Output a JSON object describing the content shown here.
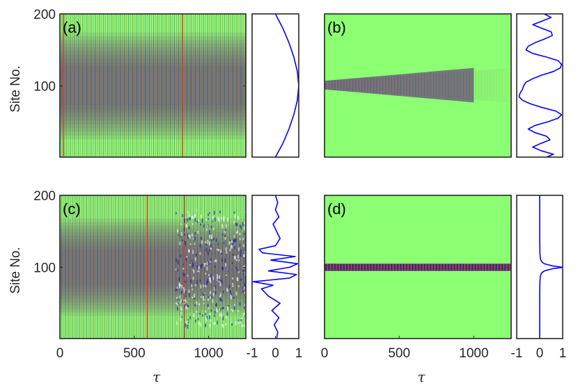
{
  "chart_data": [
    {
      "type": "heatmap",
      "panel_label": "(a)",
      "ylabel": "Site No.",
      "xlabel": "",
      "x_ticks": [],
      "y_ticks": [
        "100",
        "200"
      ],
      "y_tick_values": [
        100,
        200
      ],
      "xlim": [
        0,
        1250
      ],
      "ylim": [
        1,
        200
      ],
      "description_features": {
        "kind": "broad",
        "center": 100,
        "width": 55,
        "stripe_period": 14,
        "decay": 0.0,
        "bright_stripes": [
          0.02,
          0.66
        ]
      },
      "profile": {
        "xlim": [
          -1,
          1
        ],
        "x_ticks": [],
        "sites": [
          1,
          20,
          40,
          60,
          80,
          100,
          120,
          140,
          160,
          180,
          200
        ],
        "values": [
          0.0,
          0.32,
          0.58,
          0.79,
          0.94,
          1.0,
          0.94,
          0.79,
          0.58,
          0.32,
          0.0
        ]
      }
    },
    {
      "type": "heatmap",
      "panel_label": "(b)",
      "ylabel": "",
      "xlabel": "",
      "x_ticks": [],
      "y_ticks": [],
      "xlim": [
        0,
        1250
      ],
      "ylim": [
        1,
        200
      ],
      "description_features": {
        "kind": "fading",
        "center": 101,
        "width": 6,
        "stripe_period": 10,
        "decay": 0.6
      },
      "profile": {
        "xlim": [
          -1,
          1
        ],
        "x_ticks": [],
        "sites": [
          1,
          5,
          10,
          15,
          20,
          25,
          30,
          35,
          40,
          45,
          50,
          55,
          60,
          65,
          70,
          75,
          80,
          85,
          90,
          95,
          100,
          105,
          110,
          115,
          120,
          125,
          130,
          135,
          140,
          145,
          150,
          155,
          160,
          165,
          170,
          175,
          180,
          185,
          190,
          195,
          200
        ],
        "values": [
          0.3,
          0.6,
          0.05,
          -0.3,
          0.05,
          0.45,
          0.3,
          -0.2,
          -0.5,
          -0.2,
          0.35,
          0.8,
          0.95,
          0.7,
          0.1,
          -0.4,
          -0.75,
          -0.9,
          -0.85,
          -0.75,
          -0.7,
          -0.6,
          -0.3,
          0.1,
          0.6,
          0.9,
          0.95,
          0.8,
          0.3,
          -0.3,
          -0.6,
          -0.5,
          -0.2,
          0.2,
          0.55,
          0.5,
          0.1,
          -0.3,
          0.1,
          0.5,
          0.2
        ]
      }
    },
    {
      "type": "heatmap",
      "panel_label": "(c)",
      "ylabel": "Site No.",
      "xlabel": "τ",
      "x_ticks": [
        "0",
        "500",
        "1000"
      ],
      "x_tick_values": [
        0,
        500,
        1000
      ],
      "y_ticks": [
        "100",
        "200"
      ],
      "y_tick_values": [
        100,
        200
      ],
      "xlim": [
        0,
        1250
      ],
      "ylim": [
        1,
        200
      ],
      "description_features": {
        "kind": "turbulent",
        "center": 100,
        "width": 50,
        "stripe_period": 12,
        "decay": 0.0,
        "bright_stripes": [
          0.47,
          0.67
        ]
      },
      "profile": {
        "xlim": [
          -1,
          1
        ],
        "x_ticks": [
          "-1",
          "0",
          "1"
        ],
        "x_tick_values": [
          -1,
          0,
          1
        ],
        "sites": [
          1,
          10,
          20,
          30,
          40,
          50,
          60,
          70,
          75,
          80,
          85,
          90,
          95,
          100,
          105,
          110,
          115,
          120,
          125,
          130,
          140,
          150,
          160,
          170,
          180,
          190,
          200
        ],
        "values": [
          0.05,
          0.1,
          -0.05,
          0.15,
          -0.15,
          0.2,
          -0.3,
          -0.6,
          -0.1,
          -0.95,
          0.6,
          0.9,
          -0.3,
          0.6,
          0.95,
          -0.2,
          0.85,
          -0.55,
          -0.7,
          0.0,
          0.2,
          0.05,
          -0.1,
          0.15,
          0.0,
          0.1,
          0.0
        ]
      }
    },
    {
      "type": "heatmap",
      "panel_label": "(d)",
      "ylabel": "",
      "xlabel": "τ",
      "x_ticks": [
        "0",
        "500",
        "1000"
      ],
      "x_tick_values": [
        0,
        500,
        1000
      ],
      "y_ticks": [],
      "xlim": [
        0,
        1250
      ],
      "ylim": [
        1,
        200
      ],
      "description_features": {
        "kind": "localized",
        "center": 100,
        "width": 5,
        "stripe_period": 10,
        "decay": 0.0
      },
      "profile": {
        "xlim": [
          -1,
          1
        ],
        "x_ticks": [
          "-1",
          "0",
          "1"
        ],
        "x_tick_values": [
          -1,
          0,
          1
        ],
        "sites": [
          1,
          60,
          80,
          88,
          92,
          95,
          98,
          100,
          102,
          105,
          108,
          112,
          120,
          140,
          200
        ],
        "values": [
          0.0,
          0.0,
          0.01,
          0.03,
          0.08,
          0.2,
          0.55,
          1.0,
          0.55,
          0.2,
          0.08,
          0.03,
          0.01,
          0.0,
          0.0
        ]
      }
    }
  ],
  "colors": {
    "background": "#8cff73",
    "positive": "#d63a2a",
    "negative": "#1a1aa8",
    "profile_line": "#0000ff",
    "frame": "#262626"
  }
}
